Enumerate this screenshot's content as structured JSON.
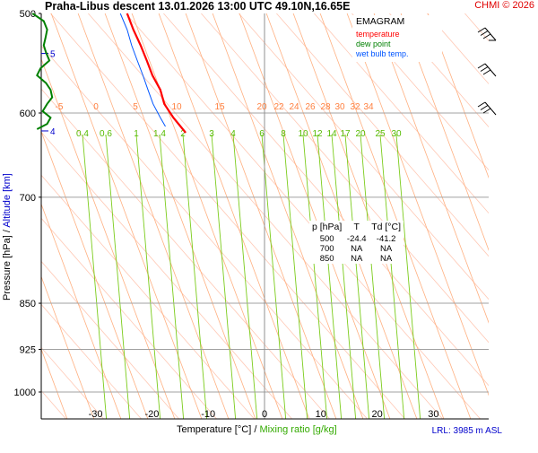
{
  "header": {
    "title": "Praha-Libus   descent   13.01.2026 13:00 UTC  49.10N,16.65E",
    "copyright": "CHMI © 2026"
  },
  "legend": {
    "title": "EMAGRAM",
    "items": [
      {
        "label": "temperature",
        "color": "#ff0000"
      },
      {
        "label": "dew point",
        "color": "#008000"
      },
      {
        "label": "wet bulb temp.",
        "color": "#0055ff"
      }
    ]
  },
  "table": {
    "headers": [
      "p [hPa]",
      "T",
      "Td [°C]"
    ],
    "rows": [
      [
        "500",
        "-24.4",
        "-41.2"
      ],
      [
        "700",
        "NA",
        "NA"
      ],
      [
        "850",
        "NA",
        "NA"
      ]
    ]
  },
  "axes": {
    "x_title_temp": "Temperature [°C]",
    "x_title_sep": "/",
    "x_title_mix": "Mixing ratio [g/kg]",
    "y_title_p": "Pressure [hPa]",
    "y_title_sep": "/",
    "y_title_alt": "Altitude [km]"
  },
  "footer": {
    "lrl": "LRL: 3985 m ASL"
  },
  "colors": {
    "temperature": "#ff0000",
    "dewpoint": "#008000",
    "wetbulb": "#0055ff",
    "dry_adiabat": "#ffc8b4",
    "moist_adiabat": "#ffb080",
    "mixing_ratio": "#7ccc1c",
    "isobar": "#a0a0a0",
    "altitude": "#0000cc"
  },
  "chart_data": {
    "type": "line",
    "diagram": "emagram",
    "xlim": [
      -40,
      40
    ],
    "ylim_hpa": [
      1000,
      500
    ],
    "y_scale": "log",
    "isobars_hpa": [
      500,
      600,
      700,
      850,
      925,
      1000
    ],
    "x_ticks_c": [
      -30,
      -20,
      -10,
      0,
      10,
      20,
      30
    ],
    "altitude_ticks": [
      {
        "p": 538,
        "label": "5"
      },
      {
        "p": 620,
        "label": "4"
      }
    ],
    "moist_adiabat_labels": [
      "-5",
      "0",
      "5",
      "10",
      "15",
      "20",
      "22",
      "24",
      "26",
      "28",
      "30",
      "32",
      "34"
    ],
    "mixing_ratio_labels": [
      "0.4",
      "0.6",
      "1",
      "1.4",
      "2",
      "3",
      "4",
      "6",
      "8",
      "10",
      "12",
      "14",
      "17",
      "20",
      "25",
      "30"
    ],
    "series": [
      {
        "name": "temperature",
        "points": [
          [
            -24.4,
            500
          ],
          [
            -23.3,
            515
          ],
          [
            -22.0,
            530
          ],
          [
            -20.9,
            545
          ],
          [
            -19.9,
            560
          ],
          [
            -18.5,
            575
          ],
          [
            -17.8,
            590
          ],
          [
            -16.2,
            605
          ],
          [
            -14.9,
            615
          ],
          [
            -14.0,
            622
          ]
        ]
      },
      {
        "name": "wet bulb temp.",
        "points": [
          [
            -25.6,
            500
          ],
          [
            -24.4,
            515
          ],
          [
            -23.6,
            530
          ],
          [
            -22.6,
            545
          ],
          [
            -21.6,
            560
          ],
          [
            -20.7,
            575
          ],
          [
            -19.8,
            590
          ],
          [
            -18.5,
            605
          ],
          [
            -17.6,
            615
          ]
        ]
      },
      {
        "name": "dew point",
        "points": [
          [
            -41.2,
            500
          ],
          [
            -39.2,
            507
          ],
          [
            -38.6,
            515
          ],
          [
            -38.9,
            523
          ],
          [
            -39.2,
            530
          ],
          [
            -38.8,
            537
          ],
          [
            -38.2,
            545
          ],
          [
            -39.8,
            553
          ],
          [
            -40.4,
            560
          ],
          [
            -38.8,
            568
          ],
          [
            -38.0,
            575
          ],
          [
            -37.7,
            583
          ],
          [
            -38.6,
            590
          ],
          [
            -39.4,
            598
          ],
          [
            -38.0,
            605
          ],
          [
            -38.6,
            612
          ],
          [
            -40.4,
            618
          ]
        ]
      }
    ]
  }
}
